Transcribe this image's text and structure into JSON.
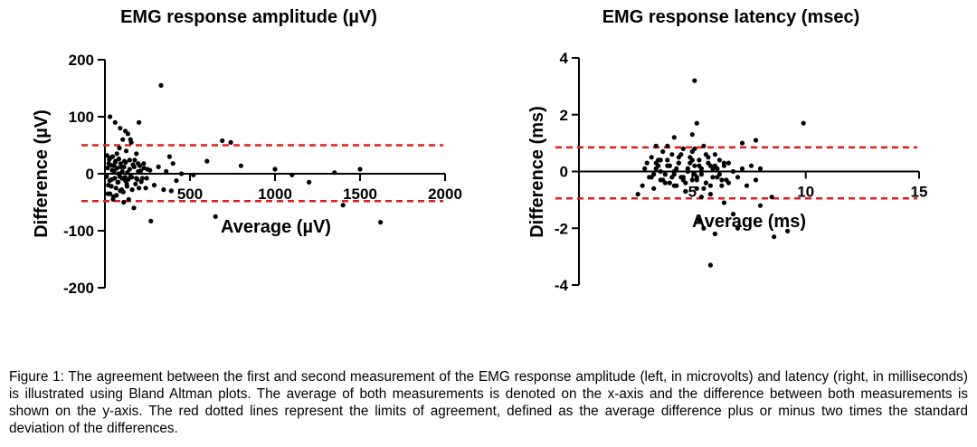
{
  "chart_data": [
    {
      "type": "scatter",
      "title": "EMG response amplitude (µV)",
      "xlabel": "Average (µV)",
      "ylabel": "Difference (µV)",
      "xlim": [
        0,
        2000
      ],
      "ylim": [
        -200,
        200
      ],
      "x_ticks": [
        500,
        1000,
        1500,
        2000
      ],
      "x_tick_labels": [
        "500",
        "1000",
        "1500",
        "2000"
      ],
      "y_ticks": [
        200,
        100,
        0,
        -100,
        -200
      ],
      "y_tick_labels": [
        "200",
        "100",
        "0",
        "-100",
        "-200"
      ],
      "grid": false,
      "limits_of_agreement": [
        50,
        -48
      ],
      "series": [
        {
          "x": [
            10,
            15,
            20,
            25,
            30,
            35,
            40,
            45,
            50,
            55,
            60,
            65,
            70,
            75,
            80,
            85,
            90,
            95,
            100,
            105,
            110,
            115,
            120,
            125,
            130,
            135,
            140,
            145,
            150,
            155,
            160,
            165,
            170,
            175,
            180,
            185,
            190,
            195,
            200,
            205,
            210,
            220,
            230,
            240,
            250,
            12,
            18,
            22,
            28,
            32,
            38,
            42,
            48,
            52,
            58,
            62,
            68,
            72,
            78,
            82,
            88,
            92,
            98,
            102,
            108,
            112,
            118,
            122,
            128,
            132,
            138,
            145,
            158,
            172,
            185,
            196,
            214,
            228,
            246,
            265,
            290,
            315,
            345,
            360,
            380,
            400,
            420,
            450,
            520,
            600,
            650,
            690,
            740,
            800,
            1000,
            1100,
            1200,
            1350,
            1400,
            1500,
            1620,
            30,
            60,
            90,
            120,
            150,
            200,
            270,
            330,
            390
          ],
          "y": [
            -5,
            10,
            -20,
            25,
            -35,
            15,
            -10,
            30,
            -40,
            5,
            20,
            -25,
            35,
            -15,
            0,
            45,
            -30,
            12,
            -8,
            60,
            -50,
            22,
            -12,
            40,
            -22,
            70,
            -45,
            8,
            -5,
            55,
            -28,
            16,
            -60,
            24,
            -18,
            35,
            -10,
            18,
            -25,
            14,
            5,
            -8,
            10,
            -25,
            8,
            32,
            -35,
            18,
            -12,
            28,
            -22,
            6,
            -45,
            14,
            -8,
            22,
            -38,
            10,
            -15,
            26,
            -5,
            18,
            -28,
            4,
            -32,
            12,
            -6,
            20,
            -18,
            2,
            -10,
            24,
            -6,
            12,
            -8,
            4,
            -14,
            18,
            -8,
            6,
            -20,
            12,
            -28,
            4,
            30,
            18,
            -12,
            0,
            -2,
            22,
            -75,
            58,
            55,
            14,
            8,
            -2,
            -15,
            2,
            -55,
            8,
            -85,
            100,
            90,
            80,
            75,
            60,
            90,
            -83,
            155,
            -30
          ],
          "color": "#000000"
        }
      ]
    },
    {
      "type": "scatter",
      "title": "EMG response latency (msec)",
      "xlabel": "Average (ms)",
      "ylabel": "Difference (ms)",
      "xlim": [
        0,
        15
      ],
      "ylim": [
        -4,
        4
      ],
      "x_ticks": [
        5,
        10,
        15
      ],
      "x_tick_labels": [
        "5",
        "10",
        "15"
      ],
      "y_ticks": [
        4,
        2,
        0,
        -2,
        -4
      ],
      "y_tick_labels": [
        "4",
        "2",
        "0",
        "-2",
        "-4"
      ],
      "grid": false,
      "limits_of_agreement": [
        0.85,
        -0.95
      ],
      "series": [
        {
          "x": [
            2.6,
            2.8,
            3.0,
            3.1,
            3.2,
            3.3,
            3.4,
            3.5,
            3.6,
            3.7,
            3.8,
            3.9,
            4.0,
            4.1,
            4.2,
            4.3,
            4.4,
            4.5,
            4.6,
            4.7,
            4.8,
            4.9,
            5.0,
            5.1,
            5.2,
            5.3,
            5.4,
            5.5,
            5.6,
            5.7,
            5.8,
            5.9,
            6.0,
            6.1,
            6.2,
            6.3,
            6.4,
            6.5,
            6.6,
            6.8,
            7.0,
            7.2,
            7.4,
            7.6,
            7.8,
            8.0,
            8.5,
            2.9,
            3.2,
            3.4,
            3.6,
            3.8,
            4.0,
            4.2,
            4.4,
            4.6,
            4.8,
            5.0,
            5.2,
            5.4,
            5.6,
            5.8,
            6.0,
            6.2,
            6.4,
            6.6,
            3.3,
            3.5,
            3.7,
            3.9,
            4.1,
            4.3,
            4.5,
            4.7,
            4.9,
            5.1,
            5.3,
            5.5,
            5.7,
            5.9,
            6.1,
            6.3,
            3.6,
            3.8,
            4.0,
            4.2,
            4.4,
            4.6,
            4.8,
            5.0,
            5.2,
            5.4,
            5.6,
            5.8,
            5.1,
            5.2,
            5.0,
            5.3,
            5.5,
            6.0,
            6.4,
            5.8,
            4.2,
            3.4,
            7.2,
            7.8,
            8.0,
            8.6,
            9.2,
            9.9,
            5.1,
            5.4,
            4.7,
            3.9,
            6.8,
            7.0
          ],
          "y": [
            -0.8,
            -0.5,
            0.3,
            -0.2,
            0.5,
            -0.6,
            0.1,
            0.4,
            -0.3,
            0.7,
            -0.1,
            0.2,
            -0.4,
            0.6,
            0.0,
            -0.5,
            0.3,
            -0.2,
            0.8,
            -0.7,
            0.1,
            0.5,
            -0.3,
            0.2,
            -0.6,
            0.4,
            -0.1,
            0.9,
            -0.4,
            0.3,
            -0.8,
            0.1,
            0.6,
            -0.2,
            0.4,
            -0.5,
            0.2,
            -0.3,
            0.3,
            0.0,
            -0.2,
            0.1,
            -0.5,
            0.2,
            -0.3,
            0.1,
            -0.9,
            0.1,
            -0.2,
            0.3,
            0.0,
            -0.4,
            0.2,
            -0.1,
            0.5,
            -0.3,
            0.1,
            0.4,
            -0.2,
            0.0,
            0.6,
            -0.5,
            0.2,
            -0.1,
            0.3,
            -0.4,
            -0.1,
            0.2,
            -0.3,
            0.4,
            -0.2,
            0.1,
            0.6,
            -0.4,
            0.3,
            -0.1,
            0.2,
            -0.6,
            0.5,
            -0.2,
            0.1,
            -0.3,
            0.4,
            -0.1,
            0.2,
            -0.5,
            0.3,
            -0.2,
            0.0,
            0.7,
            -0.3,
            0.1,
            -0.4,
            0.2,
            3.2,
            1.7,
            1.3,
            -1.7,
            -2.0,
            -2.2,
            -1.1,
            -3.3,
            1.2,
            0.9,
            1.0,
            1.1,
            -1.2,
            -2.3,
            -2.1,
            1.7,
            0.8,
            -0.9,
            -0.7,
            0.9,
            -1.5,
            -2.0
          ],
          "color": "#000000"
        }
      ]
    }
  ],
  "caption": "Figure 1: The agreement between the first and second measurement of the EMG response amplitude (left, in microvolts) and latency (right, in milliseconds) is illustrated using Bland Altman plots. The average of both measurements is denoted on the x-axis and the difference between both measurements is shown on the y-axis. The red dotted lines represent the limits of agreement, defined as the average difference plus or minus two times the standard deviation of the differences.",
  "colors": {
    "points": "#000000",
    "limits": "#e8191a",
    "axis": "#000000"
  }
}
